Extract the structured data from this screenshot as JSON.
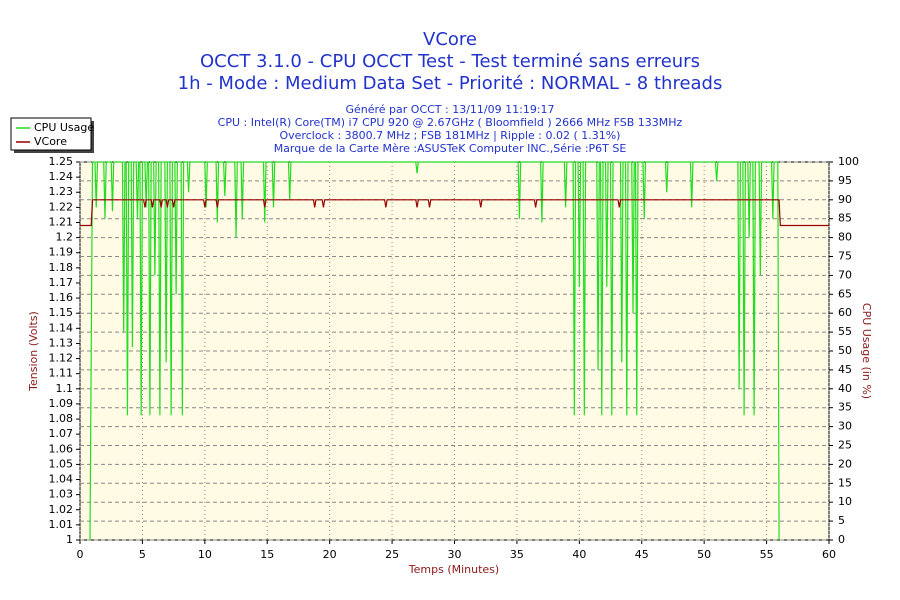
{
  "chart_data": {
    "type": "line",
    "title": "VCore",
    "subtitle": "OCCT 3.1.0 - CPU OCCT Test - Test terminé sans erreurs",
    "subtitle2": "1h - Mode : Medium Data Set - Priorité : NORMAL - 8 threads",
    "info": [
      "Généré par OCCT : 13/11/09 11:19:17",
      "CPU : Intel(R) Core(TM) i7 CPU 920 @ 2.67GHz ( Bloomfield ) 2666 MHz FSB 133MHz",
      "Overclock : 3800.7 MHz ; FSB 181MHz | Ripple : 0.02 ( 1.31%)",
      "Marque de la Carte Mère :ASUSTeK Computer INC.,Série :P6T SE"
    ],
    "xlabel": "Temps (Minutes)",
    "ylabel": "Tension (Volts)",
    "y2label": "CPU Usage (in %)",
    "xlim": [
      0,
      60
    ],
    "xticks": [
      0,
      5,
      10,
      15,
      20,
      25,
      30,
      35,
      40,
      45,
      50,
      55,
      60
    ],
    "ylim": [
      1,
      1.25
    ],
    "yticks": [
      1,
      1.01,
      1.02,
      1.03,
      1.04,
      1.05,
      1.06,
      1.07,
      1.08,
      1.09,
      1.1,
      1.11,
      1.12,
      1.13,
      1.14,
      1.15,
      1.16,
      1.17,
      1.18,
      1.19,
      1.2,
      1.21,
      1.22,
      1.23,
      1.24,
      1.25
    ],
    "y2lim": [
      0,
      100
    ],
    "y2ticks": [
      0,
      5,
      10,
      15,
      20,
      25,
      30,
      35,
      40,
      45,
      50,
      55,
      60,
      65,
      70,
      75,
      80,
      85,
      90,
      95,
      100
    ],
    "grid": true,
    "legend": "top-left",
    "series": [
      {
        "name": "CPU Usage",
        "color": "#22dd22",
        "axis": "y2",
        "x": [
          0.8,
          1.0,
          1.2,
          1.3,
          1.4,
          1.9,
          2.0,
          2.1,
          2.5,
          2.6,
          2.7,
          3.4,
          3.5,
          3.6,
          3.7,
          3.8,
          3.9,
          4.1,
          4.2,
          4.3,
          4.5,
          4.6,
          4.7,
          4.8,
          4.9,
          5.0,
          5.2,
          5.3,
          5.4,
          5.5,
          5.6,
          5.7,
          5.9,
          6.0,
          6.1,
          6.3,
          6.4,
          6.5,
          6.8,
          6.9,
          7.0,
          7.2,
          7.3,
          7.4,
          7.6,
          7.7,
          7.8,
          8.1,
          8.2,
          8.3,
          8.6,
          8.7,
          8.8,
          10.0,
          10.1,
          10.2,
          10.9,
          11.0,
          11.1,
          11.5,
          11.6,
          11.7,
          12.4,
          12.5,
          12.6,
          12.9,
          13.0,
          13.1,
          14.7,
          14.8,
          14.9,
          15.4,
          15.5,
          15.6,
          16.7,
          16.8,
          16.9,
          26.9,
          27.0,
          27.1,
          35.1,
          35.2,
          35.3,
          36.9,
          37.0,
          37.1,
          38.8,
          38.9,
          39.0,
          39.5,
          39.6,
          39.7,
          39.9,
          40.0,
          40.1,
          40.3,
          40.4,
          40.5,
          41.4,
          41.5,
          41.6,
          41.7,
          41.8,
          41.9,
          42.1,
          42.2,
          42.3,
          42.5,
          42.6,
          42.7,
          43.3,
          43.4,
          43.5,
          43.7,
          43.8,
          43.9,
          44.2,
          44.3,
          44.4,
          44.5,
          44.6,
          44.7,
          45.1,
          45.2,
          45.3,
          46.9,
          47.0,
          47.1,
          48.9,
          49.0,
          49.1,
          50.9,
          51.0,
          51.1,
          52.7,
          52.8,
          52.9,
          53.1,
          53.2,
          53.3,
          53.5,
          53.6,
          53.7,
          53.9,
          54.0,
          54.1,
          54.4,
          54.5,
          54.6,
          55.4,
          55.5,
          55.6,
          55.9,
          56.0
        ],
        "values": [
          0,
          100,
          100,
          88,
          100,
          100,
          85,
          100,
          100,
          87,
          100,
          100,
          55,
          100,
          100,
          33,
          100,
          100,
          51,
          100,
          100,
          85,
          100,
          100,
          33,
          100,
          100,
          88,
          100,
          100,
          33,
          100,
          100,
          70,
          100,
          100,
          33,
          100,
          100,
          47,
          100,
          100,
          33,
          100,
          100,
          65,
          100,
          100,
          33,
          100,
          100,
          92,
          100,
          100,
          88,
          100,
          100,
          84,
          100,
          100,
          91,
          100,
          100,
          80,
          100,
          100,
          85,
          100,
          100,
          84,
          100,
          100,
          88,
          100,
          100,
          90,
          100,
          100,
          97,
          100,
          100,
          85,
          100,
          100,
          84,
          100,
          100,
          88,
          100,
          100,
          33,
          100,
          100,
          67,
          100,
          100,
          33,
          100,
          100,
          45,
          100,
          100,
          33,
          100,
          100,
          67,
          100,
          100,
          33,
          100,
          100,
          47,
          100,
          100,
          33,
          100,
          100,
          60,
          100,
          100,
          33,
          100,
          100,
          85,
          100,
          100,
          92,
          100,
          100,
          88,
          100,
          100,
          95,
          100,
          100,
          40,
          100,
          100,
          33,
          100,
          100,
          80,
          100,
          100,
          33,
          100,
          100,
          70,
          100,
          100,
          85,
          100,
          100,
          0
        ]
      },
      {
        "name": "VCore",
        "color": "#990000",
        "x": [
          0,
          0.9,
          1.0,
          5.1,
          5.2,
          5.3,
          5.7,
          5.8,
          5.9,
          6.4,
          6.5,
          6.6,
          6.9,
          7.0,
          7.1,
          7.4,
          7.5,
          7.6,
          9.9,
          10.0,
          10.1,
          10.9,
          11.0,
          11.1,
          14.7,
          14.8,
          14.9,
          18.7,
          18.8,
          18.9,
          19.4,
          19.5,
          19.6,
          24.4,
          24.5,
          24.6,
          26.9,
          27.0,
          27.1,
          27.9,
          28.0,
          28.1,
          32.0,
          32.1,
          32.2,
          36.4,
          36.5,
          36.6,
          43.1,
          43.2,
          43.3,
          56.0,
          56.1,
          60
        ],
        "values": [
          1.208,
          1.208,
          1.225,
          1.225,
          1.22,
          1.225,
          1.225,
          1.22,
          1.225,
          1.225,
          1.22,
          1.225,
          1.225,
          1.22,
          1.225,
          1.225,
          1.22,
          1.225,
          1.225,
          1.22,
          1.225,
          1.225,
          1.22,
          1.225,
          1.225,
          1.22,
          1.225,
          1.225,
          1.22,
          1.225,
          1.225,
          1.22,
          1.225,
          1.225,
          1.22,
          1.225,
          1.225,
          1.22,
          1.225,
          1.225,
          1.22,
          1.225,
          1.225,
          1.22,
          1.225,
          1.225,
          1.22,
          1.225,
          1.225,
          1.22,
          1.225,
          1.225,
          1.208,
          1.208
        ]
      }
    ]
  }
}
